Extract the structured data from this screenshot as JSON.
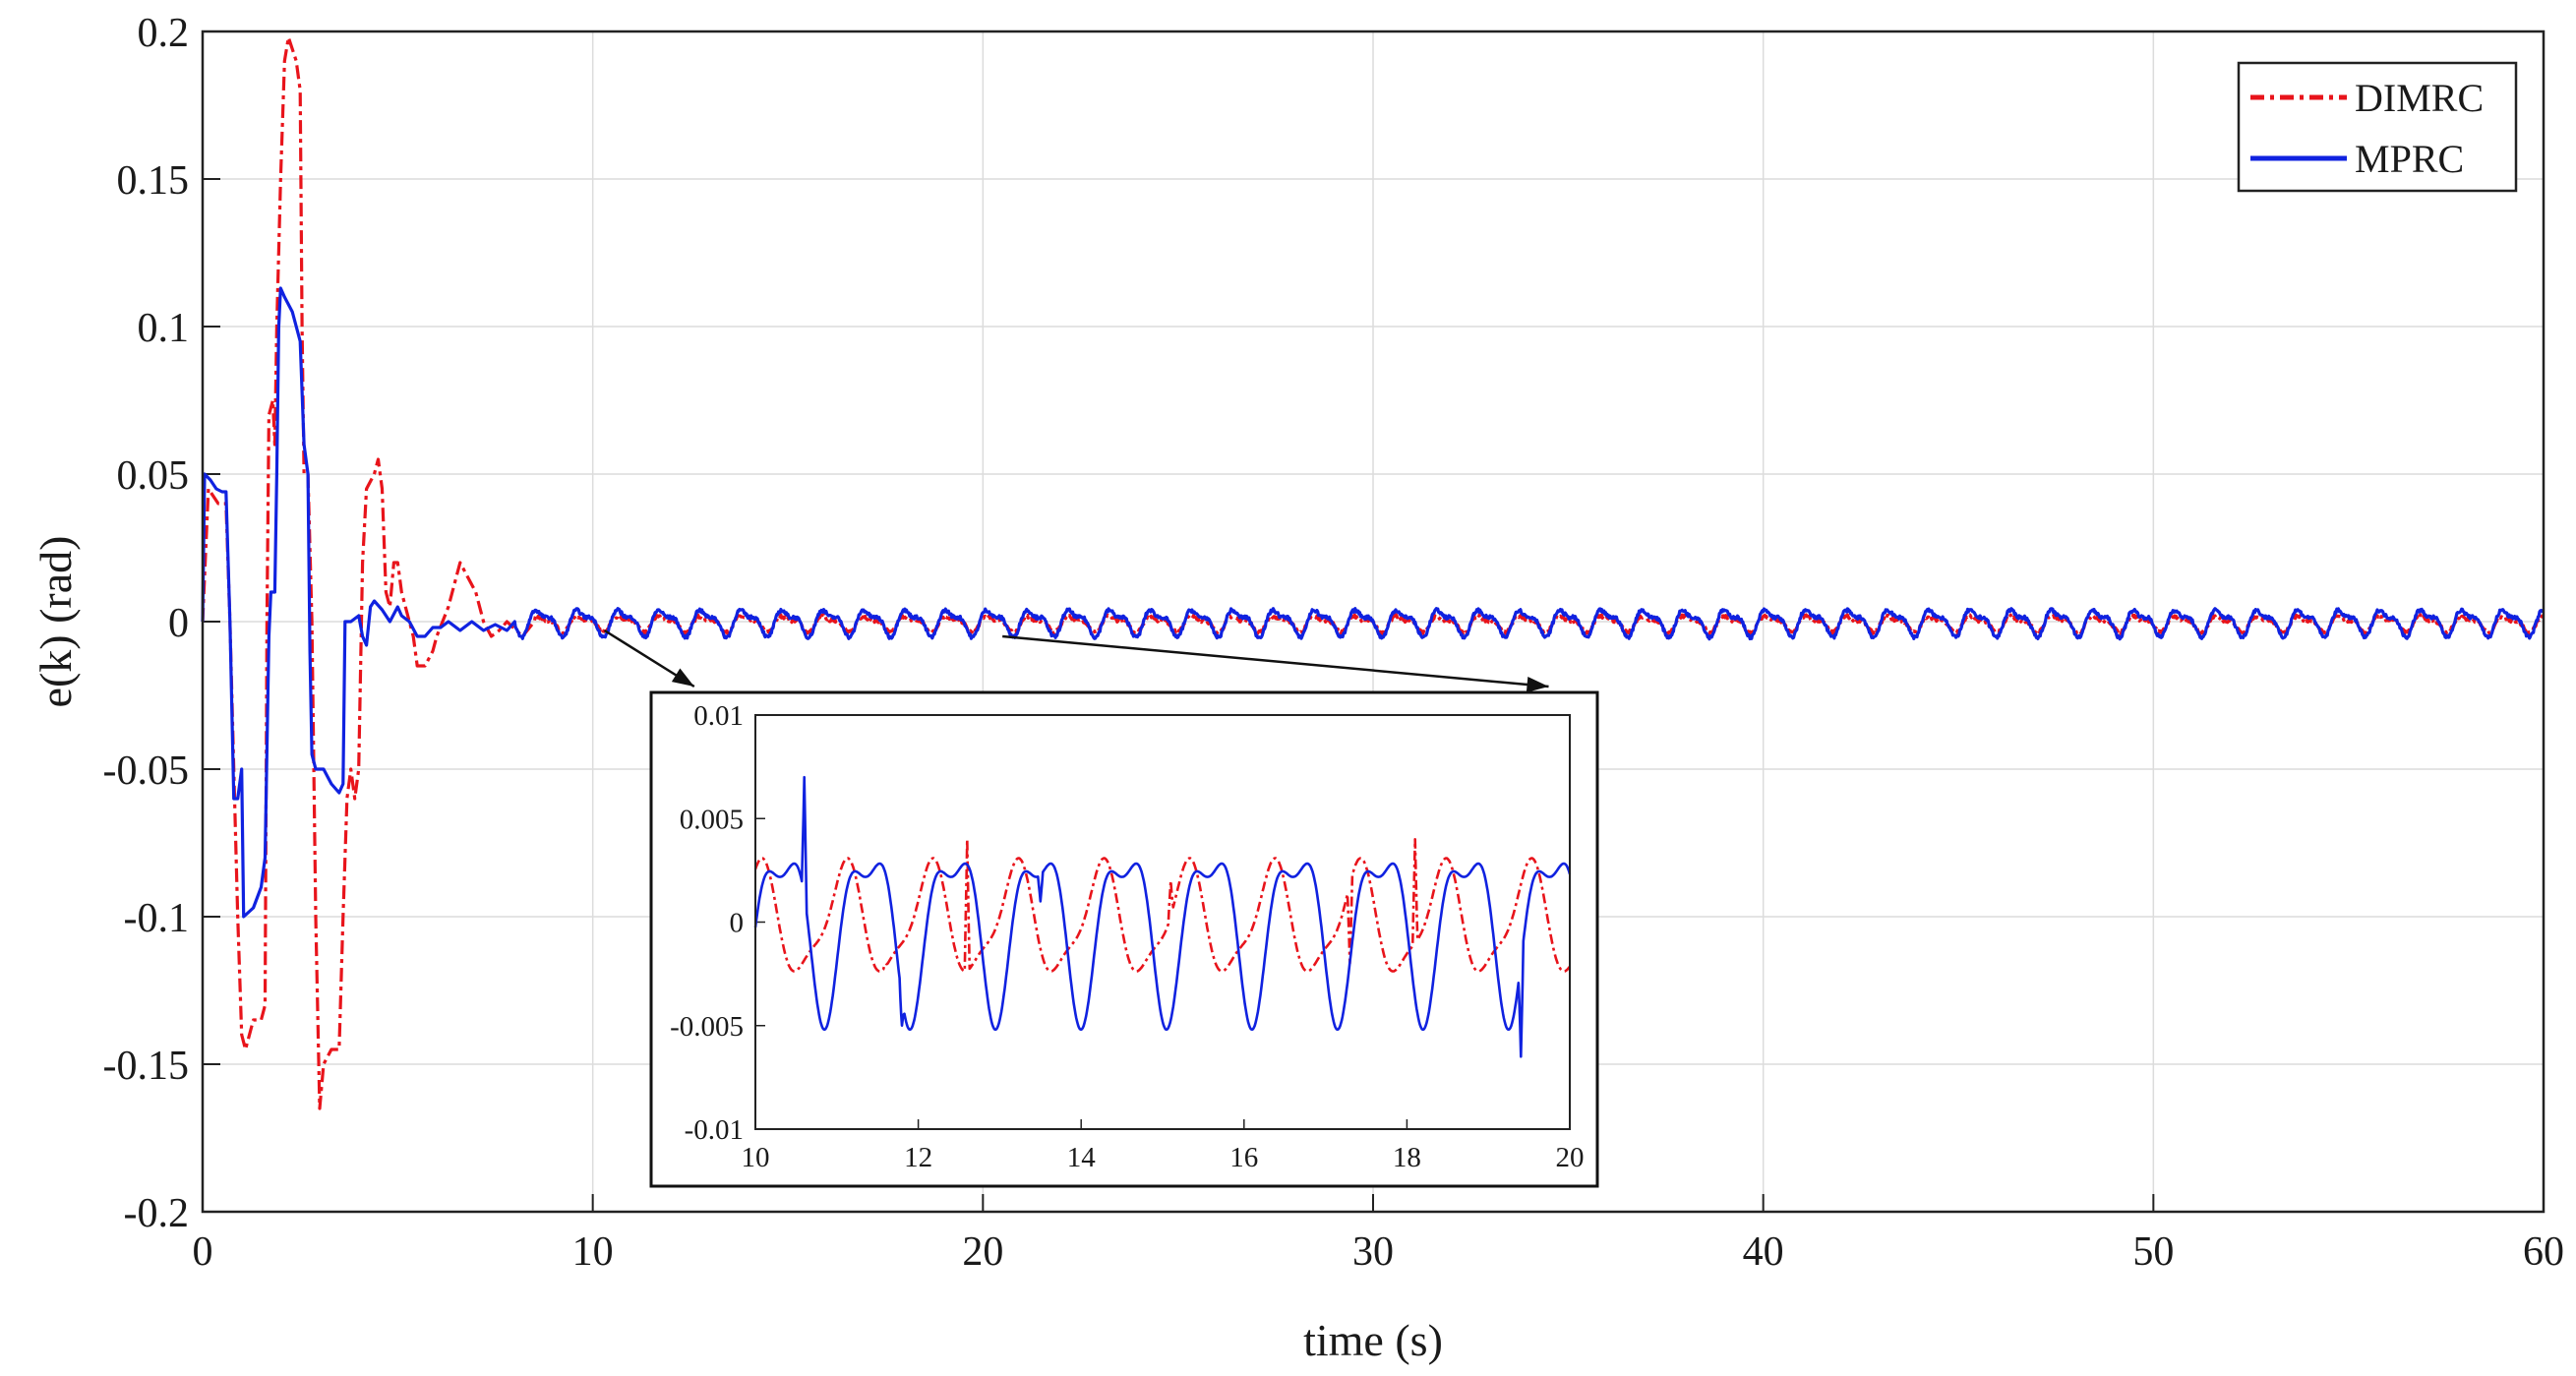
{
  "chart_data": [
    {
      "id": "main",
      "type": "line",
      "title": "",
      "xlabel": "time (s)",
      "ylabel": "e(k) (rad)",
      "xlim": [
        0,
        60
      ],
      "ylim": [
        -0.2,
        0.2
      ],
      "xticks": [
        0,
        10,
        20,
        30,
        40,
        50,
        60
      ],
      "xtick_labels": [
        "0",
        "10",
        "20",
        "30",
        "40",
        "50",
        "60"
      ],
      "yticks": [
        0.2,
        0.15,
        0.1,
        0.05,
        0,
        -0.05,
        -0.1,
        -0.15,
        -0.2
      ],
      "ytick_labels": [
        "0.2",
        "0.15",
        "0.1",
        "0.05",
        "0",
        "-0.05",
        "-0.1",
        "-0.15",
        "-0.2"
      ],
      "grid": true,
      "legend": {
        "placement": "top-right",
        "entries": [
          "DIMRC",
          "MPRC"
        ]
      },
      "series": [
        {
          "name": "DIMRC",
          "color": "#e8141b",
          "style": "dash-dot",
          "transient": [
            [
              0,
              0
            ],
            [
              0.15,
              0.045
            ],
            [
              0.4,
              0.04
            ],
            [
              0.6,
              0.04
            ],
            [
              0.7,
              0.0
            ],
            [
              0.8,
              -0.05
            ],
            [
              0.9,
              -0.1
            ],
            [
              1.0,
              -0.14
            ],
            [
              1.1,
              -0.145
            ],
            [
              1.3,
              -0.135
            ],
            [
              1.5,
              -0.135
            ],
            [
              1.6,
              -0.13
            ],
            [
              1.65,
              0.0
            ],
            [
              1.7,
              0.07
            ],
            [
              1.8,
              0.075
            ],
            [
              1.85,
              0.06
            ],
            [
              1.9,
              0.1
            ],
            [
              2.0,
              0.15
            ],
            [
              2.1,
              0.19
            ],
            [
              2.2,
              0.198
            ],
            [
              2.4,
              0.19
            ],
            [
              2.5,
              0.18
            ],
            [
              2.55,
              0.1
            ],
            [
              2.6,
              0.05
            ],
            [
              2.7,
              0.05
            ],
            [
              2.8,
              0.0
            ],
            [
              2.9,
              -0.1
            ],
            [
              3.0,
              -0.165
            ],
            [
              3.1,
              -0.15
            ],
            [
              3.3,
              -0.145
            ],
            [
              3.5,
              -0.145
            ],
            [
              3.6,
              -0.1
            ],
            [
              3.7,
              -0.06
            ],
            [
              3.8,
              -0.05
            ],
            [
              3.9,
              -0.06
            ],
            [
              4.0,
              -0.05
            ],
            [
              4.1,
              0.02
            ],
            [
              4.2,
              0.045
            ],
            [
              4.4,
              0.05
            ],
            [
              4.5,
              0.055
            ],
            [
              4.6,
              0.045
            ],
            [
              4.7,
              0.01
            ],
            [
              4.8,
              0.005
            ],
            [
              4.9,
              0.02
            ],
            [
              5.0,
              0.02
            ],
            [
              5.1,
              0.01
            ],
            [
              5.3,
              0.0
            ],
            [
              5.4,
              -0.005
            ],
            [
              5.5,
              -0.015
            ],
            [
              5.7,
              -0.015
            ],
            [
              5.9,
              -0.01
            ],
            [
              6.0,
              -0.005
            ],
            [
              6.3,
              0.005
            ],
            [
              6.5,
              0.015
            ],
            [
              6.6,
              0.02
            ],
            [
              6.8,
              0.015
            ],
            [
              7.0,
              0.01
            ],
            [
              7.2,
              0.0
            ],
            [
              7.4,
              -0.005
            ],
            [
              7.6,
              -0.003
            ],
            [
              7.8,
              0.0
            ],
            [
              8.2,
              -0.005
            ],
            [
              8.5,
              0.0
            ]
          ],
          "steady_oscillation": {
            "period_s": 1.05,
            "amplitude": 0.003,
            "offset": -0.0005
          }
        },
        {
          "name": "MPRC",
          "color": "#1022e0",
          "style": "solid",
          "transient": [
            [
              0,
              0
            ],
            [
              0.05,
              0.05
            ],
            [
              0.2,
              0.048
            ],
            [
              0.35,
              0.045
            ],
            [
              0.5,
              0.044
            ],
            [
              0.6,
              0.044
            ],
            [
              0.7,
              0.0
            ],
            [
              0.8,
              -0.06
            ],
            [
              0.9,
              -0.06
            ],
            [
              1.0,
              -0.05
            ],
            [
              1.05,
              -0.1
            ],
            [
              1.3,
              -0.097
            ],
            [
              1.5,
              -0.09
            ],
            [
              1.6,
              -0.08
            ],
            [
              1.7,
              -0.005
            ],
            [
              1.75,
              0.01
            ],
            [
              1.85,
              0.01
            ],
            [
              1.9,
              0.05
            ],
            [
              1.95,
              0.1
            ],
            [
              2.0,
              0.113
            ],
            [
              2.1,
              0.11
            ],
            [
              2.3,
              0.105
            ],
            [
              2.5,
              0.095
            ],
            [
              2.6,
              0.06
            ],
            [
              2.7,
              0.05
            ],
            [
              2.75,
              -0.01
            ],
            [
              2.8,
              -0.045
            ],
            [
              2.9,
              -0.05
            ],
            [
              3.1,
              -0.05
            ],
            [
              3.3,
              -0.055
            ],
            [
              3.5,
              -0.058
            ],
            [
              3.6,
              -0.055
            ],
            [
              3.65,
              0.0
            ],
            [
              3.8,
              0.0
            ],
            [
              4.0,
              0.002
            ],
            [
              4.1,
              -0.005
            ],
            [
              4.2,
              -0.008
            ],
            [
              4.3,
              0.005
            ],
            [
              4.4,
              0.007
            ],
            [
              4.6,
              0.004
            ],
            [
              4.8,
              0.0
            ],
            [
              5.0,
              0.005
            ],
            [
              5.1,
              0.002
            ],
            [
              5.3,
              0.0
            ],
            [
              5.5,
              -0.005
            ],
            [
              5.7,
              -0.005
            ],
            [
              5.9,
              -0.002
            ],
            [
              6.1,
              -0.002
            ],
            [
              6.3,
              0.0
            ],
            [
              6.6,
              -0.003
            ],
            [
              6.9,
              0.0
            ],
            [
              7.2,
              -0.003
            ],
            [
              7.5,
              -0.001
            ],
            [
              7.8,
              -0.003
            ],
            [
              8.0,
              0.0
            ]
          ],
          "steady_oscillation": {
            "period_s": 1.05,
            "amplitude": 0.005,
            "offset": 0.0
          }
        }
      ],
      "zoom_arrows": [
        {
          "from_x": 10.3,
          "from_y": -0.003,
          "to_x": 12.6,
          "to_y": -0.022
        },
        {
          "from_x": 20.5,
          "from_y": -0.005,
          "to_x": 34.5,
          "to_y": -0.022
        }
      ]
    },
    {
      "id": "inset",
      "type": "line",
      "title": "",
      "xlabel": "",
      "ylabel": "",
      "xlim": [
        10,
        20
      ],
      "ylim": [
        -0.01,
        0.01
      ],
      "xticks": [
        10,
        12,
        14,
        16,
        18,
        20
      ],
      "xtick_labels": [
        "10",
        "12",
        "14",
        "16",
        "18",
        "20"
      ],
      "yticks": [
        0.01,
        0.005,
        0,
        -0.005,
        -0.01
      ],
      "ytick_labels": [
        "0.01",
        "0.005",
        "0",
        "-0.005",
        "-0.01"
      ],
      "grid": false,
      "series": [
        {
          "name": "DIMRC",
          "color": "#e8141b",
          "style": "dash-dot",
          "period_s": 1.05,
          "components": [
            [
              0.0025,
              1.0,
              1.3
            ],
            [
              0.0007,
              2.0,
              0.2
            ]
          ],
          "spikes": [
            [
              12.6,
              0.004
            ],
            [
              18.1,
              0.004
            ],
            [
              17.3,
              -0.002
            ],
            [
              11.6,
              -0.002
            ],
            [
              15.1,
              0.002
            ]
          ]
        },
        {
          "name": "MPRC",
          "color": "#1022e0",
          "style": "solid",
          "period_s": 1.05,
          "components": [
            [
              0.0037,
              1.0,
              -0.4
            ],
            [
              0.0015,
              2.0,
              0.9
            ]
          ],
          "spikes": [
            [
              10.6,
              0.007
            ],
            [
              19.4,
              -0.0065
            ],
            [
              11.8,
              -0.005
            ],
            [
              13.5,
              0.001
            ]
          ]
        }
      ]
    }
  ]
}
